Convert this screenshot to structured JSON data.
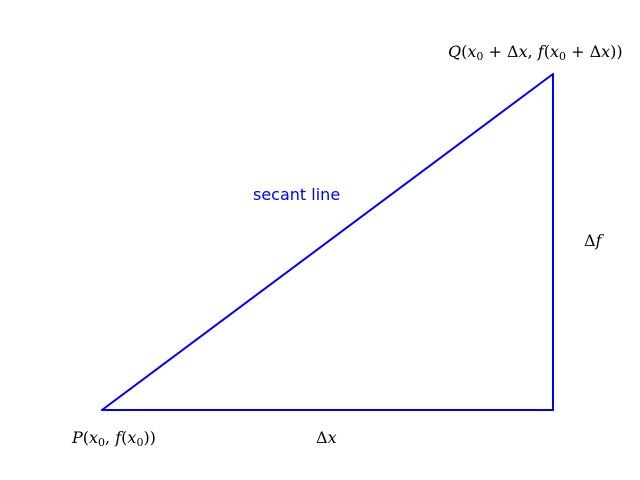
{
  "diagram": {
    "line_color": "#0000ff",
    "text_color": "#000000",
    "secant_label": "secant line",
    "points": {
      "P": "P(x0, f(x0))",
      "Q": "Q(x0 + Δx, f(x0 + Δx))"
    },
    "increments": {
      "dx": "Δx",
      "df": "Δf"
    }
  }
}
